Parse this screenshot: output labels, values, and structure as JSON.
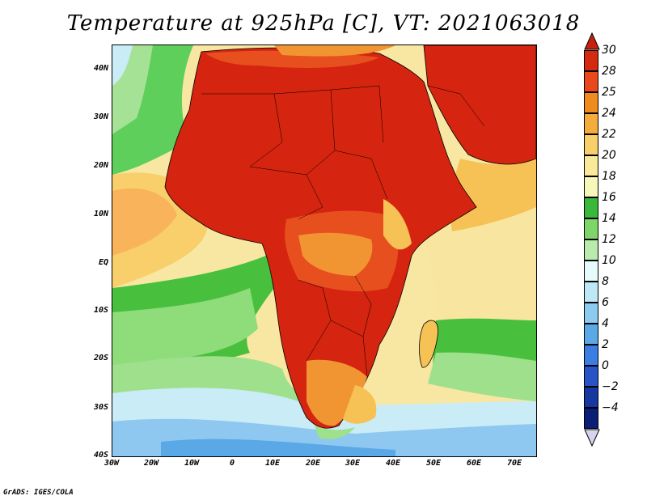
{
  "title": "Temperature at 925hPa [C], VT: 2021063018",
  "credit": "GrADS: IGES/COLA",
  "axes": {
    "y_labels": [
      "40N",
      "30N",
      "20N",
      "10N",
      "EQ",
      "10S",
      "20S",
      "30S",
      "40S"
    ],
    "x_labels": [
      "30W",
      "20W",
      "10W",
      "0",
      "10E",
      "20E",
      "30E",
      "40E",
      "50E",
      "60E",
      "70E"
    ]
  },
  "colorbar": {
    "labels": [
      "30",
      "28",
      "25",
      "24",
      "22",
      "20",
      "18",
      "16",
      "14",
      "12",
      "10",
      "8",
      "6",
      "4",
      "2",
      "0",
      "-2",
      "-4"
    ],
    "colors": [
      "#d42a10",
      "#e8481b",
      "#f08c1e",
      "#f4ad3c",
      "#f8cf6a",
      "#fae99a",
      "#f6f7b8",
      "#3ab83c",
      "#7ed66a",
      "#b9ecac",
      "#e6fbfb",
      "#bee8f5",
      "#8dcaf0",
      "#5aa8e6",
      "#3b7de0",
      "#2854c8",
      "#1638a0",
      "#0a1e78"
    ]
  },
  "map": {
    "region": "Africa",
    "colors": {
      "ocean_cold": "#8ec8f0",
      "ocean_cool": "#c9ecf6",
      "sea_green": "#48c03e",
      "sea_lightgreen": "#9ee08c",
      "warm_sea": "#f7d77e",
      "land_hot": "#d5240f",
      "land_warm": "#e84f1e",
      "land_mild": "#f19532",
      "land_cool": "#f6c256"
    }
  }
}
